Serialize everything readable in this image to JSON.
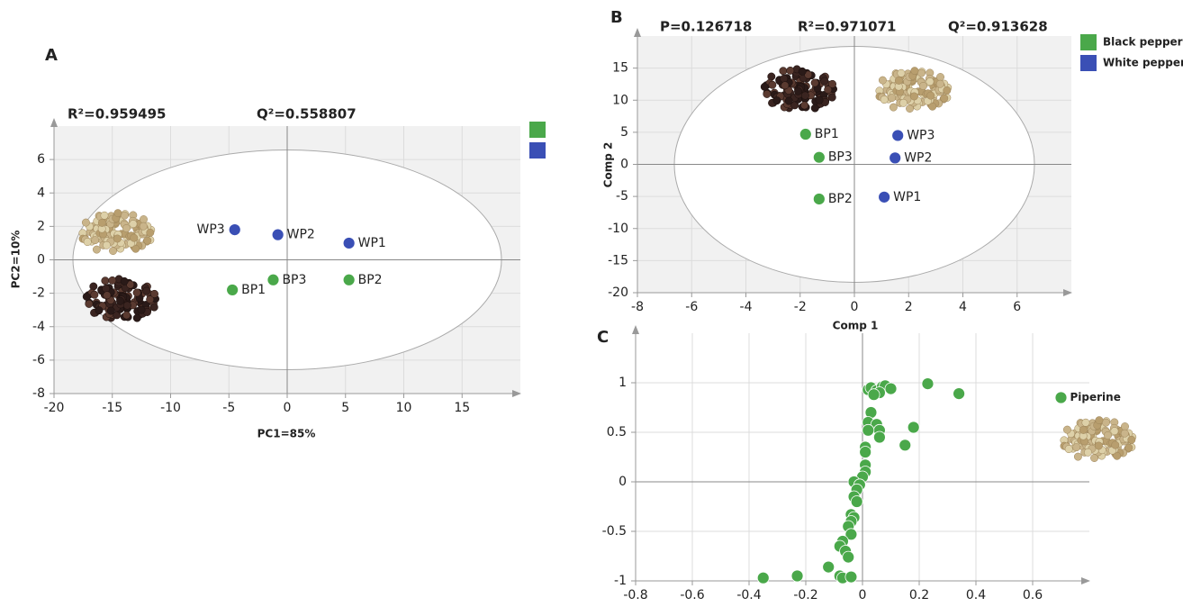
{
  "chart_data": [
    {
      "type": "scatter",
      "panel": "A",
      "annotations": [
        "R²=0.959495",
        "Q²=0.558807"
      ],
      "xlabel": "PC1=85%",
      "ylabel": "PC2=10%",
      "xlim": [
        -20,
        20
      ],
      "ylim": [
        -8,
        8
      ],
      "xticks": [
        -20,
        -15,
        -10,
        -5,
        0,
        5,
        10,
        15
      ],
      "yticks": [
        -8,
        -6,
        -4,
        -2,
        0,
        2,
        4,
        6
      ],
      "grid": true,
      "series": [
        {
          "color": "#4aa84a",
          "x": [
            -4.7,
            5.3,
            -1.2
          ],
          "values": [
            -1.8,
            -1.2,
            -1.2
          ],
          "labels": [
            "BP1",
            "BP2",
            "BP3"
          ]
        },
        {
          "color": "#3a4fb5",
          "x": [
            5.3,
            -0.8,
            -4.5
          ],
          "values": [
            1.0,
            1.5,
            1.8
          ],
          "labels": [
            "WP1",
            "WP2",
            "WP3"
          ]
        }
      ]
    },
    {
      "type": "scatter",
      "panel": "B",
      "annotations": [
        "P=0.126718",
        "R²=0.971071",
        "Q²=0.913628"
      ],
      "xlabel": "Comp 1",
      "ylabel": "Comp 2",
      "xlim": [
        -8,
        8
      ],
      "ylim": [
        -20,
        20
      ],
      "xticks": [
        -8,
        -6,
        -4,
        -2,
        0,
        2,
        4,
        6
      ],
      "yticks": [
        -20,
        -15,
        -10,
        -5,
        0,
        5,
        10,
        15
      ],
      "grid": true,
      "series": [
        {
          "name": "Black pepper",
          "color": "#4aa84a",
          "x": [
            -1.8,
            -1.3,
            -1.3
          ],
          "values": [
            4.7,
            -5.4,
            1.1
          ],
          "labels": [
            "BP1",
            "BP2",
            "BP3"
          ]
        },
        {
          "name": "White pepper",
          "color": "#3a4fb5",
          "x": [
            1.1,
            1.5,
            1.6
          ],
          "values": [
            -5.1,
            1.0,
            4.5
          ],
          "labels": [
            "WP1",
            "WP2",
            "WP3"
          ]
        }
      ]
    },
    {
      "type": "scatter",
      "panel": "C",
      "xlim": [
        -0.8,
        0.8
      ],
      "ylim": [
        -1,
        1.5
      ],
      "xticks": [
        -0.8,
        -0.6,
        -0.4,
        -0.2,
        0,
        0.2,
        0.4,
        0.6
      ],
      "yticks": [
        -1,
        -0.5,
        0,
        0.5,
        1
      ],
      "grid": true,
      "series": [
        {
          "color": "#4aa84a",
          "x": [
            0.02,
            0.03,
            0.05,
            0.07,
            0.08,
            0.1,
            0.06,
            0.04,
            0.23,
            0.34,
            0.03,
            0.02,
            0.05,
            0.06,
            0.02,
            0.06,
            0.18,
            0.15,
            0.01,
            0.01,
            0.01,
            0.01,
            0.0,
            -0.03,
            -0.01,
            -0.02,
            -0.03,
            -0.02,
            -0.04,
            -0.03,
            -0.04,
            -0.05,
            -0.04,
            -0.07,
            -0.08,
            -0.06,
            -0.05,
            -0.12,
            -0.08,
            -0.07,
            -0.04,
            -0.23,
            -0.35,
            0.7
          ],
          "values": [
            0.93,
            0.95,
            0.92,
            0.96,
            0.97,
            0.94,
            0.9,
            0.88,
            0.99,
            0.89,
            0.7,
            0.6,
            0.58,
            0.52,
            0.52,
            0.45,
            0.55,
            0.37,
            0.35,
            0.3,
            0.17,
            0.1,
            0.05,
            0.0,
            -0.03,
            -0.08,
            -0.15,
            -0.2,
            -0.33,
            -0.36,
            -0.4,
            -0.45,
            -0.53,
            -0.6,
            -0.65,
            -0.7,
            -0.76,
            -0.86,
            -0.95,
            -0.97,
            -0.96,
            -0.95,
            -0.97,
            0.85
          ],
          "labels": [
            null,
            null,
            null,
            null,
            null,
            null,
            null,
            null,
            null,
            null,
            null,
            null,
            null,
            null,
            null,
            null,
            null,
            null,
            null,
            null,
            null,
            null,
            null,
            null,
            null,
            null,
            null,
            null,
            null,
            null,
            null,
            null,
            null,
            null,
            null,
            null,
            null,
            null,
            null,
            null,
            null,
            null,
            null,
            "Piperine"
          ]
        }
      ]
    }
  ]
}
